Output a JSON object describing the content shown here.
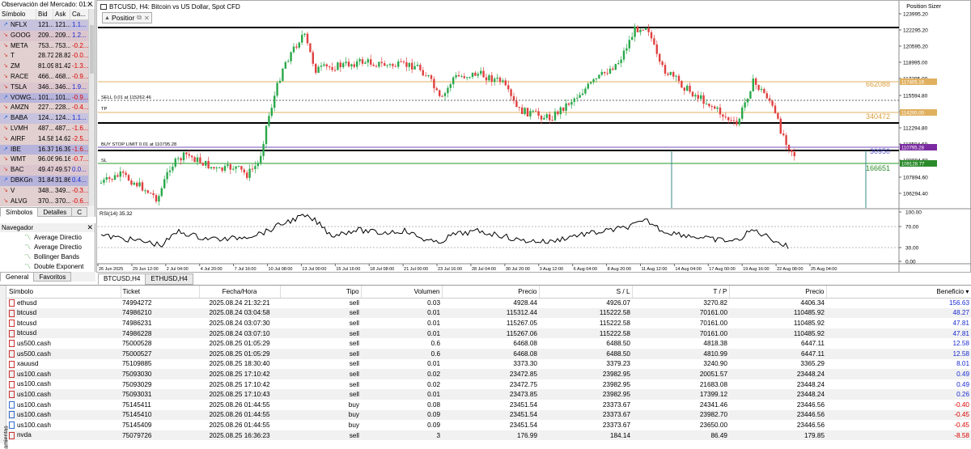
{
  "market_watch": {
    "title": "Observación del Mercado: 01:...",
    "headers": [
      "Símbolo",
      "Bid",
      "Ask",
      "Ca..."
    ],
    "rows": [
      {
        "symbol": "NFLX",
        "bid": "121...",
        "ask": "121...",
        "chg": "1.1...",
        "dir": "up",
        "bg": "#c7c2de",
        "neg": false
      },
      {
        "symbol": "GOOG",
        "bid": "209...",
        "ask": "209...",
        "chg": "1.2...",
        "dir": "dn",
        "bg": "#dcc6ce",
        "neg": false
      },
      {
        "symbol": "META",
        "bid": "753...",
        "ask": "753...",
        "chg": "-0.2...",
        "dir": "dn",
        "bg": "#e2cfcf",
        "neg": true
      },
      {
        "symbol": "T",
        "bid": "28.72",
        "ask": "28.82",
        "chg": "-0.0...",
        "dir": "dn",
        "bg": "#e2cfcf",
        "neg": true
      },
      {
        "symbol": "ZM",
        "bid": "81.09",
        "ask": "81.42",
        "chg": "-1.3...",
        "dir": "dn",
        "bg": "#e2cfcf",
        "neg": true
      },
      {
        "symbol": "RACE",
        "bid": "466...",
        "ask": "468...",
        "chg": "-0.9...",
        "dir": "dn",
        "bg": "#e2cfcf",
        "neg": true
      },
      {
        "symbol": "TSLA",
        "bid": "346...",
        "ask": "346...",
        "chg": "1.9...",
        "dir": "dn",
        "bg": "#dcc6ce",
        "neg": false
      },
      {
        "symbol": "VOWG...",
        "bid": "101...",
        "ask": "101...",
        "chg": "-0.9...",
        "dir": "up",
        "bg": "#b7b4dc",
        "neg": true
      },
      {
        "symbol": "AMZN",
        "bid": "227...",
        "ask": "228...",
        "chg": "-0.4...",
        "dir": "dn",
        "bg": "#e2cfcf",
        "neg": true
      },
      {
        "symbol": "BABA",
        "bid": "124...",
        "ask": "124...",
        "chg": "1.1...",
        "dir": "up",
        "bg": "#c7c2de",
        "neg": false
      },
      {
        "symbol": "LVMH",
        "bid": "487...",
        "ask": "487...",
        "chg": "-1.6...",
        "dir": "dn",
        "bg": "#e2cfcf",
        "neg": true
      },
      {
        "symbol": "AIRF",
        "bid": "14.58",
        "ask": "14.62",
        "chg": "-2.5...",
        "dir": "dn",
        "bg": "#e2cfcf",
        "neg": true
      },
      {
        "symbol": "IBE",
        "bid": "16.37",
        "ask": "16.39",
        "chg": "-1.6...",
        "dir": "up",
        "bg": "#b7b4dc",
        "neg": true
      },
      {
        "symbol": "WMT",
        "bid": "96.06",
        "ask": "96.16",
        "chg": "-0.7...",
        "dir": "dn",
        "bg": "#e2cfcf",
        "neg": true
      },
      {
        "symbol": "BAC",
        "bid": "49.47",
        "ask": "49.57",
        "chg": "0.0...",
        "dir": "dn",
        "bg": "#dcc6ce",
        "neg": false
      },
      {
        "symbol": "DBKGn",
        "bid": "31.84",
        "ask": "31.86",
        "chg": "0.4...",
        "dir": "up",
        "bg": "#b7b4dc",
        "neg": false
      },
      {
        "symbol": "V",
        "bid": "348...",
        "ask": "349...",
        "chg": "-0.3...",
        "dir": "dn",
        "bg": "#e2cfcf",
        "neg": true
      },
      {
        "symbol": "ALVG",
        "bid": "370...",
        "ask": "370...",
        "chg": "-0.6...",
        "dir": "dn",
        "bg": "#e2cfcf",
        "neg": true
      }
    ],
    "tabs": [
      "Símbolos",
      "Detalles",
      "C"
    ]
  },
  "navigator": {
    "title": "Navegador",
    "items": [
      "Average Directio",
      "Average Directio",
      "Bollinger Bands",
      "Double Exponent"
    ],
    "tabs": [
      "General",
      "Favoritos"
    ]
  },
  "chart": {
    "title": "BTCUSD, H4:  Bitcoin vs US Dollar, Spot CFD",
    "position_sizer_label": "Position Sizer",
    "panel_button": "Positior",
    "line_labels": {
      "sell": "SELL 0.01 at 115262.46",
      "tp": "TP",
      "buy_stop": "BUY STOP LIMIT 0.01 at 110795.28",
      "sl": "SL"
    },
    "right_values": {
      "upper": "662088",
      "mid": "340472",
      "buy": "30950",
      "low": "166651"
    },
    "price_scale": [
      "123995.20",
      "122295.20",
      "120595.20",
      "118995.00",
      "117295.00",
      "115594.80",
      "113994.80",
      "112294.80",
      "110594.60",
      "108994.60",
      "107894.60",
      "106294.40"
    ],
    "price_badges": {
      "gold1": "117405.16",
      "gold2": "114200.00",
      "purple": "110795.28",
      "green": "109128.77"
    },
    "rsi_label": "RSI(14) 35.32",
    "rsi_scale": [
      "100.00",
      "70.00",
      "30.00",
      "0.00"
    ],
    "time_axis": [
      "26 Jun 2025",
      "29 Jun 12:00",
      "2 Jul 04:00",
      "4 Jul 20:00",
      "7 Jul 16:00",
      "10 Jul 08:00",
      "13 Jul 00:00",
      "15 Jul 16:00",
      "18 Jul 08:00",
      "21 Jul 00:00",
      "23 Jul 16:00",
      "28 Jul 04:00",
      "30 Jul 20:00",
      "3 Aug 12:00",
      "6 Aug 04:00",
      "8 Aug 20:00",
      "11 Aug 12:00",
      "14 Aug 04:00",
      "17 Aug 00:00",
      "19 Aug 16:00",
      "22 Aug 08:00",
      "25 Aug 04:00"
    ],
    "tabs": [
      "BTCUSD,H4",
      "ETHUSD,H4"
    ]
  },
  "trade": {
    "side_label": "amientas",
    "headers": [
      "Símbolo",
      "Ticket",
      "Fecha/Hora",
      "Tipo",
      "Volumen",
      "Precio",
      "S / L",
      "T / P",
      "Precio",
      "Beneficio"
    ],
    "rows": [
      {
        "symbol": "ethusd",
        "ticket": "74994272",
        "time": "2025.08.24 21:32:21",
        "type": "sell",
        "volume": "0.03",
        "price": "4928.44",
        "sl": "4926.07",
        "tp": "3270.82",
        "cur": "4406.34",
        "profit": "156.63"
      },
      {
        "symbol": "btcusd",
        "ticket": "74986210",
        "time": "2025.08.24 03:04:58",
        "type": "sell",
        "volume": "0.01",
        "price": "115312.44",
        "sl": "115222.58",
        "tp": "70161.00",
        "cur": "110485.92",
        "profit": "48.27"
      },
      {
        "symbol": "btcusd",
        "ticket": "74986231",
        "time": "2025.08.24 03:07:30",
        "type": "sell",
        "volume": "0.01",
        "price": "115267.05",
        "sl": "115222.58",
        "tp": "70161.00",
        "cur": "110485.92",
        "profit": "47.81"
      },
      {
        "symbol": "btcusd",
        "ticket": "74986228",
        "time": "2025.08.24 03:07:10",
        "type": "sell",
        "volume": "0.01",
        "price": "115267.06",
        "sl": "115222.58",
        "tp": "70161.00",
        "cur": "110485.92",
        "profit": "47.81"
      },
      {
        "symbol": "us500.cash",
        "ticket": "75000528",
        "time": "2025.08.25 01:05:29",
        "type": "sell",
        "volume": "0.6",
        "price": "6468.08",
        "sl": "6488.50",
        "tp": "4818.38",
        "cur": "6447.11",
        "profit": "12.58"
      },
      {
        "symbol": "us500.cash",
        "ticket": "75000527",
        "time": "2025.08.25 01:05:29",
        "type": "sell",
        "volume": "0.6",
        "price": "6468.08",
        "sl": "6488.50",
        "tp": "4810.99",
        "cur": "6447.11",
        "profit": "12.58"
      },
      {
        "symbol": "xauusd",
        "ticket": "75109885",
        "time": "2025.08.25 18:30:40",
        "type": "sell",
        "volume": "0.01",
        "price": "3373.30",
        "sl": "3379.23",
        "tp": "3240.90",
        "cur": "3365.29",
        "profit": "8.01"
      },
      {
        "symbol": "us100.cash",
        "ticket": "75093030",
        "time": "2025.08.25 17:10:42",
        "type": "sell",
        "volume": "0.02",
        "price": "23472.85",
        "sl": "23982.95",
        "tp": "20051.57",
        "cur": "23448.24",
        "profit": "0.49"
      },
      {
        "symbol": "us100.cash",
        "ticket": "75093029",
        "time": "2025.08.25 17:10:42",
        "type": "sell",
        "volume": "0.02",
        "price": "23472.75",
        "sl": "23982.95",
        "tp": "21683.08",
        "cur": "23448.24",
        "profit": "0.49"
      },
      {
        "symbol": "us100.cash",
        "ticket": "75093031",
        "time": "2025.08.25 17:10:43",
        "type": "sell",
        "volume": "0.01",
        "price": "23473.85",
        "sl": "23982.95",
        "tp": "17399.12",
        "cur": "23448.24",
        "profit": "0.26"
      },
      {
        "symbol": "us100.cash",
        "ticket": "75145411",
        "time": "2025.08.26 01:44:55",
        "type": "buy",
        "volume": "0.08",
        "price": "23451.54",
        "sl": "23373.67",
        "tp": "24341.46",
        "cur": "23446.56",
        "profit": "-0.40"
      },
      {
        "symbol": "us100.cash",
        "ticket": "75145410",
        "time": "2025.08.26 01:44:55",
        "type": "buy",
        "volume": "0.09",
        "price": "23451.54",
        "sl": "23373.67",
        "tp": "23982.70",
        "cur": "23446.56",
        "profit": "-0.45"
      },
      {
        "symbol": "us100.cash",
        "ticket": "75145409",
        "time": "2025.08.26 01:44:55",
        "type": "buy",
        "volume": "0.09",
        "price": "23451.54",
        "sl": "23373.67",
        "tp": "23650.00",
        "cur": "23446.56",
        "profit": "-0.45"
      },
      {
        "symbol": "nvda",
        "ticket": "75079726",
        "time": "2025.08.25 16:36:23",
        "type": "sell",
        "volume": "3",
        "price": "176.99",
        "sl": "184.14",
        "tp": "86.49",
        "cur": "179.85",
        "profit": "-8.58"
      }
    ]
  }
}
